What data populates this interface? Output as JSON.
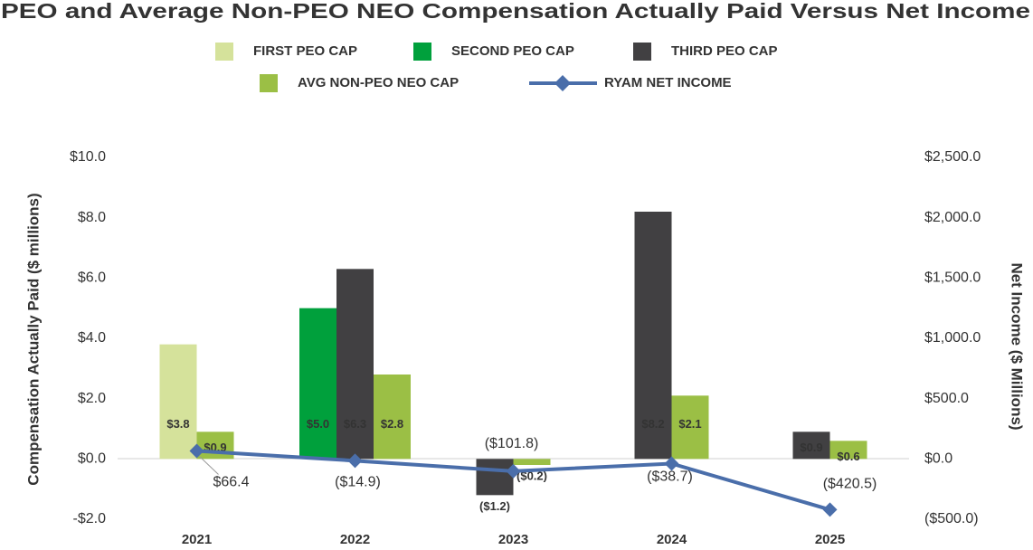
{
  "chart_data": {
    "type": "bar",
    "title": "PEO and Average Non-PEO NEO Compensation Actually Paid Versus Net Income",
    "y_label": "Compensation Actually Paid ($ millions)",
    "y2_label": "Net Income ($ Millions)",
    "categories": [
      "2021",
      "2022",
      "2023",
      "2024",
      "2025"
    ],
    "series": [
      {
        "name": "FIRST PEO CAP",
        "color": "#d5e29b",
        "values": [
          3.8,
          null,
          null,
          null,
          null
        ],
        "value_labels": [
          "$3.8",
          null,
          null,
          null,
          null
        ]
      },
      {
        "name": "SECOND PEO CAP",
        "color": "#00a03c",
        "values": [
          null,
          5.0,
          null,
          null,
          null
        ],
        "value_labels": [
          null,
          "$5.0",
          null,
          null,
          null
        ]
      },
      {
        "name": "THIRD PEO CAP",
        "color": "#414042",
        "values": [
          null,
          6.3,
          -1.2,
          8.2,
          0.9
        ],
        "value_labels": [
          null,
          "$6.3",
          "($1.2)",
          "$8.2",
          "$0.9"
        ]
      },
      {
        "name": "AVG NON-PEO NEO CAP",
        "color": "#9bbf45",
        "values": [
          0.9,
          2.8,
          -0.2,
          2.1,
          0.6
        ],
        "value_labels": [
          "$0.9",
          "$2.8",
          "($0.2)",
          "$2.1",
          "$0.6"
        ]
      },
      {
        "name": "RYAM NET INCOME",
        "color": "#4a6eaa",
        "type": "line",
        "axis": "y2",
        "values": [
          66.4,
          -14.9,
          -101.8,
          -38.7,
          -420.5
        ],
        "value_labels": [
          "$66.4",
          "($14.9)",
          "($101.8)",
          "($38.7)",
          "($420.5)"
        ]
      }
    ],
    "ylim": [
      -2,
      10
    ],
    "yticks": [
      {
        "value": -2,
        "label": "-$2.0"
      },
      {
        "value": 0,
        "label": "$0.0"
      },
      {
        "value": 2,
        "label": "$2.0"
      },
      {
        "value": 4,
        "label": "$4.0"
      },
      {
        "value": 6,
        "label": "$6.0"
      },
      {
        "value": 8,
        "label": "$8.0"
      },
      {
        "value": 10,
        "label": "$10.0"
      }
    ],
    "y2lim": [
      -500,
      2500
    ],
    "y2ticks": [
      {
        "value": -500,
        "label": "($500.0)"
      },
      {
        "value": 0,
        "label": "$0.0"
      },
      {
        "value": 500,
        "label": "$500.0"
      },
      {
        "value": 1000,
        "label": "$1,000.0"
      },
      {
        "value": 1500,
        "label": "$1,500.0"
      },
      {
        "value": 2000,
        "label": "$2,000.0"
      },
      {
        "value": 2500,
        "label": "$2,500.0"
      }
    ],
    "grid": false
  }
}
